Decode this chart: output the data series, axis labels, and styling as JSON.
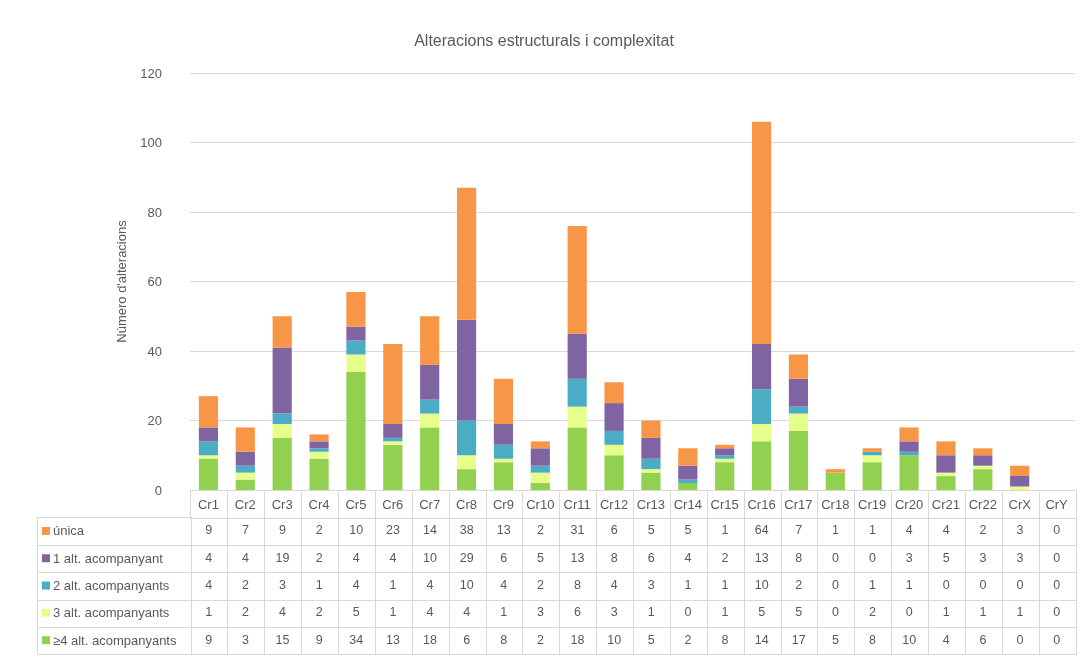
{
  "chart_data": {
    "type": "bar",
    "title": "Alteracions estructurals i complexitat",
    "ylabel": "Número d'alteracions",
    "categories": [
      "Cr1",
      "Cr2",
      "Cr3",
      "Cr4",
      "Cr5",
      "Cr6",
      "Cr7",
      "Cr8",
      "Cr9",
      "Cr10",
      "Cr11",
      "Cr12",
      "Cr13",
      "Cr14",
      "Cr15",
      "Cr16",
      "Cr17",
      "Cr18",
      "Cr19",
      "Cr20",
      "Cr21",
      "Cr22",
      "CrX",
      "CrY"
    ],
    "series": [
      {
        "name": "≥4 alt. acompanyants",
        "color": "#92d050",
        "values": [
          9,
          3,
          15,
          9,
          34,
          13,
          18,
          6,
          8,
          2,
          18,
          10,
          5,
          2,
          8,
          14,
          17,
          5,
          8,
          10,
          4,
          6,
          0,
          0
        ]
      },
      {
        "name": "3 alt. acompanyants",
        "color": "#e6ff8a",
        "values": [
          1,
          2,
          4,
          2,
          5,
          1,
          4,
          4,
          1,
          3,
          6,
          3,
          1,
          0,
          1,
          5,
          5,
          0,
          2,
          0,
          1,
          1,
          1,
          0
        ]
      },
      {
        "name": "2 alt. acompanyants",
        "color": "#4bacc6",
        "values": [
          4,
          2,
          3,
          1,
          4,
          1,
          4,
          10,
          4,
          2,
          8,
          4,
          3,
          1,
          1,
          10,
          2,
          0,
          1,
          1,
          0,
          0,
          0,
          0
        ]
      },
      {
        "name": "1 alt. acompanyant",
        "color": "#8064a2",
        "values": [
          4,
          4,
          19,
          2,
          4,
          4,
          10,
          29,
          6,
          5,
          13,
          8,
          6,
          4,
          2,
          13,
          8,
          0,
          0,
          3,
          5,
          3,
          3,
          0
        ]
      },
      {
        "name": "única",
        "color": "#f79646",
        "values": [
          9,
          7,
          9,
          2,
          10,
          23,
          14,
          38,
          13,
          2,
          31,
          6,
          5,
          5,
          1,
          64,
          7,
          1,
          1,
          4,
          4,
          2,
          3,
          0
        ]
      }
    ],
    "stacked": true,
    "ylim": [
      0,
      120
    ],
    "yticks": [
      0,
      20,
      40,
      60,
      80,
      100,
      120
    ],
    "grid": "y",
    "legend": "bottom left",
    "data_labels": true
  }
}
